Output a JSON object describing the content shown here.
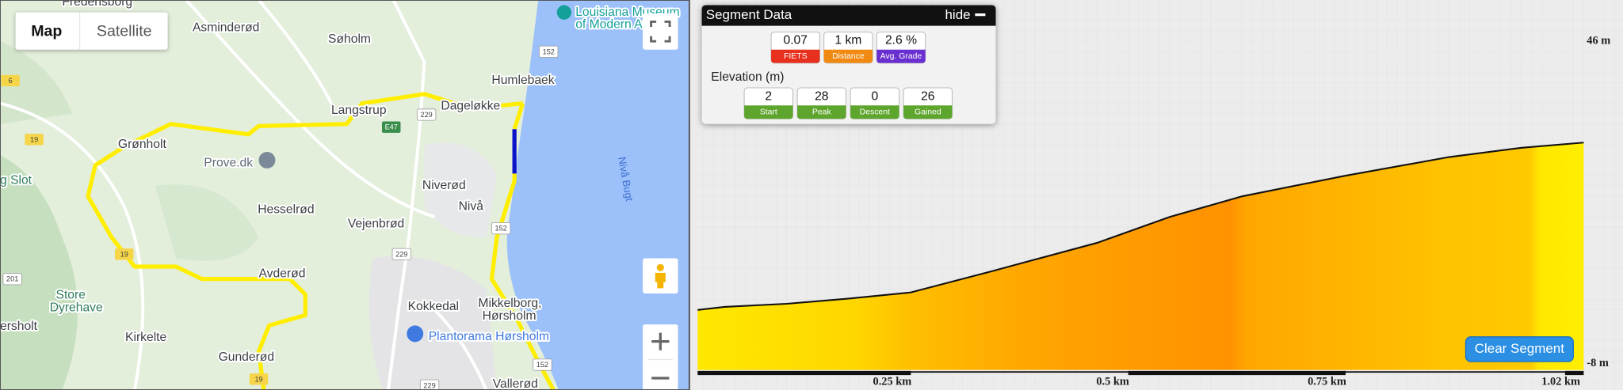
{
  "map": {
    "type_buttons": [
      "Map",
      "Satellite"
    ],
    "places": [
      "Fredensborg",
      "Asminderød",
      "Søholm",
      "Louisiana Museum",
      "of Modern Art",
      "Humlebaek",
      "Langstrup",
      "Dageløkke",
      "Grønholt",
      "Prove.dk",
      "g Slot",
      "Niverød",
      "Nivå",
      "Nivå Bugt",
      "Hesselrød",
      "Vejenbrød",
      "Avderød",
      "Store",
      "Dyrehave",
      "ersholt",
      "Kokkedal",
      "Mikkelborg,",
      "Hørsholm",
      "Plantorama Hørsholm",
      "Kirkelte",
      "Gunderød",
      "Vallerød"
    ],
    "road_shields": [
      "152",
      "E47",
      "229",
      "19",
      "229",
      "152",
      "19",
      "201",
      "6",
      "152",
      "19",
      "229"
    ]
  },
  "segment_panel": {
    "title": "Segment Data",
    "toggle": "hide",
    "stats": [
      {
        "value": 0.07,
        "label": "FIETS"
      },
      {
        "value": "1 km",
        "label": "Distance"
      },
      {
        "value": "2.6 %",
        "label": "Avg. Grade"
      }
    ],
    "elevation_heading": "Elevation (m)",
    "elevation": [
      {
        "value": 2,
        "label": "Start"
      },
      {
        "value": 28,
        "label": "Peak"
      },
      {
        "value": 0,
        "label": "Descent"
      },
      {
        "value": 26,
        "label": "Gained"
      }
    ]
  },
  "profile": {
    "y_labels": [
      "46 m",
      "-8 m"
    ],
    "x_labels": [
      "0.25 km",
      "0.5 km",
      "0.75 km",
      "1.02 km"
    ]
  },
  "clear_button": "Clear Segment"
}
